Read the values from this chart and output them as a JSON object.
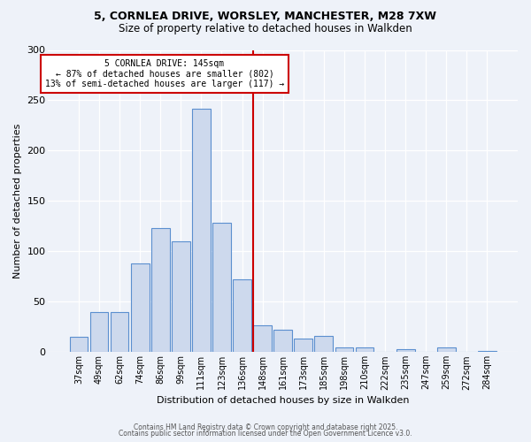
{
  "title_line1": "5, CORNLEA DRIVE, WORSLEY, MANCHESTER, M28 7XW",
  "title_line2": "Size of property relative to detached houses in Walkden",
  "xlabel": "Distribution of detached houses by size in Walkden",
  "ylabel": "Number of detached properties",
  "bar_labels": [
    "37sqm",
    "49sqm",
    "62sqm",
    "74sqm",
    "86sqm",
    "99sqm",
    "111sqm",
    "123sqm",
    "136sqm",
    "148sqm",
    "161sqm",
    "173sqm",
    "185sqm",
    "198sqm",
    "210sqm",
    "222sqm",
    "235sqm",
    "247sqm",
    "259sqm",
    "272sqm",
    "284sqm"
  ],
  "bar_values": [
    15,
    40,
    40,
    88,
    123,
    110,
    242,
    128,
    72,
    27,
    22,
    13,
    16,
    5,
    5,
    0,
    3,
    0,
    5,
    0,
    1
  ],
  "bar_color": "#cdd9ed",
  "bar_edgecolor": "#5b8fcf",
  "vline_color": "#cc0000",
  "annotation_title": "5 CORNLEA DRIVE: 145sqm",
  "annotation_line2": "← 87% of detached houses are smaller (802)",
  "annotation_line3": "13% of semi-detached houses are larger (117) →",
  "annotation_box_edgecolor": "#cc0000",
  "ylim": [
    0,
    300
  ],
  "yticks": [
    0,
    50,
    100,
    150,
    200,
    250,
    300
  ],
  "bg_color": "#eef2f9",
  "grid_color": "#ffffff",
  "footer_line1": "Contains HM Land Registry data © Crown copyright and database right 2025.",
  "footer_line2": "Contains public sector information licensed under the Open Government Licence v3.0."
}
